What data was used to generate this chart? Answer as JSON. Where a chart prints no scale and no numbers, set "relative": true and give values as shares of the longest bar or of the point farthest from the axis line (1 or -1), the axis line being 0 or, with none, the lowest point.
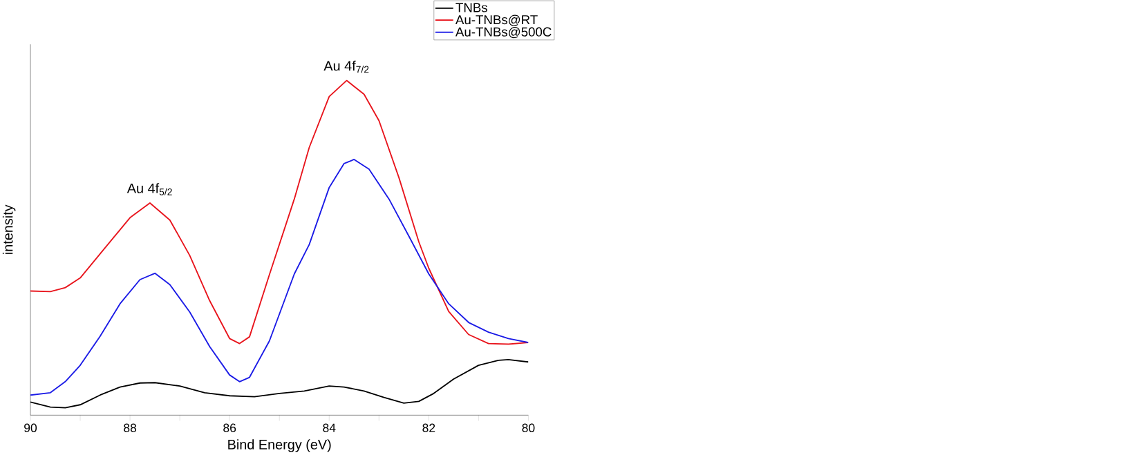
{
  "chart_data": {
    "type": "line",
    "relative": true,
    "xlabel": "Bind Energy (eV)",
    "ylabel": "intensity",
    "xlim": [
      90,
      80
    ],
    "xticks": [
      90,
      {
        "value": 89,
        "label": null
      },
      88,
      {
        "value": 87,
        "label": null
      },
      86,
      {
        "value": 85,
        "label": null
      },
      84,
      {
        "value": 83,
        "label": null
      },
      82,
      {
        "value": 81,
        "label": null
      },
      80
    ],
    "legend": "top right",
    "grid": false,
    "marker": "none",
    "line_style": "solid",
    "annotations": [
      {
        "text": "Au 4f$_{5/2}$",
        "x": 87.6,
        "y": 0.634
      },
      {
        "text": "Au 4f$_{7/2}$",
        "x": 83.65,
        "y": 1.0
      }
    ],
    "series": [
      {
        "name": "TNBs",
        "color": "#000000",
        "x": [
          90,
          89.6,
          89.3,
          89.0,
          88.6,
          88.2,
          87.8,
          87.5,
          87.0,
          86.5,
          86.0,
          85.5,
          85.0,
          84.5,
          84.0,
          83.7,
          83.3,
          82.9,
          82.5,
          82.2,
          81.9,
          81.5,
          81.0,
          80.6,
          80.4,
          80.0
        ],
        "values": [
          0.039,
          0.024,
          0.022,
          0.031,
          0.06,
          0.084,
          0.096,
          0.097,
          0.087,
          0.067,
          0.058,
          0.055,
          0.065,
          0.072,
          0.087,
          0.084,
          0.072,
          0.053,
          0.036,
          0.041,
          0.065,
          0.108,
          0.149,
          0.164,
          0.166,
          0.159
        ]
      },
      {
        "name": "Au-TNBs@RT",
        "color": "#e8141c",
        "x": [
          90,
          89.6,
          89.3,
          89.0,
          88.5,
          88.0,
          87.6,
          87.2,
          86.8,
          86.4,
          86.0,
          85.8,
          85.6,
          85.2,
          84.7,
          84.4,
          84.0,
          83.65,
          83.3,
          83.0,
          82.6,
          82.2,
          82.0,
          81.6,
          81.2,
          80.8,
          80.4,
          80.0
        ],
        "values": [
          0.371,
          0.369,
          0.381,
          0.41,
          0.5,
          0.59,
          0.634,
          0.583,
          0.477,
          0.342,
          0.229,
          0.214,
          0.234,
          0.42,
          0.646,
          0.8,
          0.952,
          1.0,
          0.959,
          0.88,
          0.71,
          0.518,
          0.439,
          0.31,
          0.241,
          0.214,
          0.212,
          0.217
        ]
      },
      {
        "name": "Au-TNBs@500C",
        "color": "#1a1ae6",
        "x": [
          90,
          89.6,
          89.3,
          89.0,
          88.6,
          88.2,
          87.8,
          87.5,
          87.2,
          86.8,
          86.4,
          86.0,
          85.8,
          85.6,
          85.2,
          84.7,
          84.4,
          84.0,
          83.7,
          83.5,
          83.2,
          82.8,
          82.4,
          82.0,
          81.6,
          81.2,
          80.8,
          80.4,
          80.0
        ],
        "values": [
          0.06,
          0.067,
          0.1,
          0.149,
          0.236,
          0.333,
          0.405,
          0.424,
          0.39,
          0.308,
          0.205,
          0.12,
          0.1,
          0.113,
          0.222,
          0.422,
          0.51,
          0.68,
          0.752,
          0.764,
          0.735,
          0.646,
          0.535,
          0.422,
          0.333,
          0.277,
          0.248,
          0.229,
          0.217
        ]
      }
    ]
  }
}
